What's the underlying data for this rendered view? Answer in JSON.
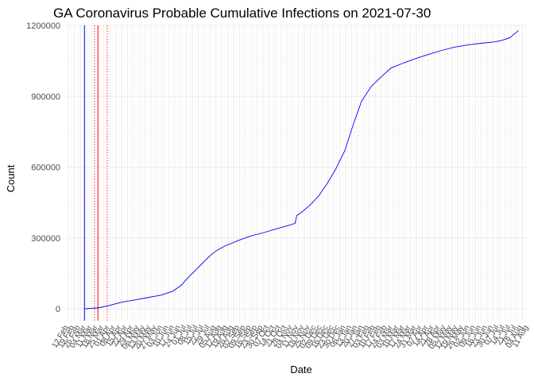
{
  "chart_data": {
    "type": "line",
    "title": "GA Coronavirus Probable Cumulative Infections on 2021-07-30",
    "xlabel": "Date",
    "ylabel": "Count",
    "x_type": "date",
    "xlim": [
      "2020-02-10",
      "2021-08-10"
    ],
    "ylim": [
      -50000,
      1200000
    ],
    "y_ticks": [
      0,
      300000,
      600000,
      900000,
      1200000
    ],
    "y_tick_labels": [
      "0",
      "300000",
      "600000",
      "900000",
      "1200000"
    ],
    "grid": true,
    "legend": "none",
    "line_color": "#0000ff",
    "x_tick_labels": [
      {
        "date": "2020-02-12",
        "label": "12 Feb"
      },
      {
        "date": "2020-02-19",
        "label": "19 Feb"
      },
      {
        "date": "2020-02-26",
        "label": "26 Feb"
      },
      {
        "date": "2020-03-04",
        "label": "04 Mar"
      },
      {
        "date": "2020-03-11",
        "label": "11 Mar"
      },
      {
        "date": "2020-03-18",
        "label": "18 Mar"
      },
      {
        "date": "2020-03-25",
        "label": "25 Mar"
      },
      {
        "date": "2020-04-01",
        "label": "01 Apr"
      },
      {
        "date": "2020-04-08",
        "label": "08 Apr"
      },
      {
        "date": "2020-04-15",
        "label": "15 Apr"
      },
      {
        "date": "2020-04-22",
        "label": "22 Apr"
      },
      {
        "date": "2020-04-29",
        "label": "29 Apr"
      },
      {
        "date": "2020-05-06",
        "label": "06 May"
      },
      {
        "date": "2020-05-13",
        "label": "13 May"
      },
      {
        "date": "2020-05-20",
        "label": "20 May"
      },
      {
        "date": "2020-05-27",
        "label": "27 May"
      },
      {
        "date": "2020-06-03",
        "label": "03 Jun"
      },
      {
        "date": "2020-06-10",
        "label": "10 Jun"
      },
      {
        "date": "2020-06-17",
        "label": "17 Jun"
      },
      {
        "date": "2020-06-24",
        "label": "24 Jun"
      },
      {
        "date": "2020-07-01",
        "label": "01 Jul"
      },
      {
        "date": "2020-07-08",
        "label": "08 Jul"
      },
      {
        "date": "2020-07-15",
        "label": "15 Jul"
      },
      {
        "date": "2020-07-22",
        "label": "22 Jul"
      },
      {
        "date": "2020-07-29",
        "label": "29 Jul"
      },
      {
        "date": "2020-08-05",
        "label": "05 Aug"
      },
      {
        "date": "2020-08-12",
        "label": "12 Aug"
      },
      {
        "date": "2020-08-19",
        "label": "19 Aug"
      },
      {
        "date": "2020-08-26",
        "label": "26 Aug"
      },
      {
        "date": "2020-09-02",
        "label": "02 Sep"
      },
      {
        "date": "2020-09-09",
        "label": "09 Sep"
      },
      {
        "date": "2020-09-16",
        "label": "16 Sep"
      },
      {
        "date": "2020-09-23",
        "label": "23 Sep"
      },
      {
        "date": "2020-09-30",
        "label": "30 Sep"
      },
      {
        "date": "2020-10-07",
        "label": "07 Oct"
      },
      {
        "date": "2020-10-14",
        "label": "14 Oct"
      },
      {
        "date": "2020-10-21",
        "label": "21 Oct"
      },
      {
        "date": "2020-10-28",
        "label": "28 Oct"
      },
      {
        "date": "2020-11-04",
        "label": "04 Nov"
      },
      {
        "date": "2020-11-11",
        "label": "11 Nov"
      },
      {
        "date": "2020-11-18",
        "label": "18 Nov"
      },
      {
        "date": "2020-11-25",
        "label": "25 Nov"
      },
      {
        "date": "2020-12-02",
        "label": "02 Dec"
      },
      {
        "date": "2020-12-09",
        "label": "09 Dec"
      },
      {
        "date": "2020-12-16",
        "label": "16 Dec"
      },
      {
        "date": "2020-12-23",
        "label": "23 Dec"
      },
      {
        "date": "2020-12-30",
        "label": "30 Dec"
      },
      {
        "date": "2021-01-06",
        "label": "06 Jan"
      },
      {
        "date": "2021-01-13",
        "label": "13 Jan"
      },
      {
        "date": "2021-01-20",
        "label": "20 Jan"
      },
      {
        "date": "2021-01-27",
        "label": "27 Jan"
      },
      {
        "date": "2021-02-03",
        "label": "03 Feb"
      },
      {
        "date": "2021-02-10",
        "label": "10 Feb"
      },
      {
        "date": "2021-02-17",
        "label": "17 Feb"
      },
      {
        "date": "2021-02-24",
        "label": "24 Feb"
      },
      {
        "date": "2021-03-03",
        "label": "03 Mar"
      },
      {
        "date": "2021-03-10",
        "label": "10 Mar"
      },
      {
        "date": "2021-03-17",
        "label": "17 Mar"
      },
      {
        "date": "2021-03-24",
        "label": "24 Mar"
      },
      {
        "date": "2021-03-31",
        "label": "31 Mar"
      },
      {
        "date": "2021-04-07",
        "label": "07 Apr"
      },
      {
        "date": "2021-04-14",
        "label": "14 Apr"
      },
      {
        "date": "2021-04-21",
        "label": "21 Apr"
      },
      {
        "date": "2021-04-28",
        "label": "28 Apr"
      },
      {
        "date": "2021-05-05",
        "label": "05 May"
      },
      {
        "date": "2021-05-12",
        "label": "12 May"
      },
      {
        "date": "2021-05-19",
        "label": "19 May"
      },
      {
        "date": "2021-05-26",
        "label": "26 May"
      },
      {
        "date": "2021-06-02",
        "label": "02 Jun"
      },
      {
        "date": "2021-06-09",
        "label": "09 Jun"
      },
      {
        "date": "2021-06-16",
        "label": "16 Jun"
      },
      {
        "date": "2021-06-23",
        "label": "23 Jun"
      },
      {
        "date": "2021-06-30",
        "label": "30 Jun"
      },
      {
        "date": "2021-07-07",
        "label": "07 Jul"
      },
      {
        "date": "2021-07-14",
        "label": "14 Jul"
      },
      {
        "date": "2021-07-21",
        "label": "21 Jul"
      },
      {
        "date": "2021-07-28",
        "label": "28 Jul"
      },
      {
        "date": "2021-08-04",
        "label": "04 Aug"
      },
      {
        "date": "2021-08-11",
        "label": "11 Aug"
      }
    ],
    "series": [
      {
        "color": "#0000ff",
        "x": [
          "2020-03-02",
          "2020-03-20",
          "2020-04-01",
          "2020-04-15",
          "2020-05-01",
          "2020-05-15",
          "2020-06-01",
          "2020-06-15",
          "2020-06-25",
          "2020-07-01",
          "2020-07-08",
          "2020-07-15",
          "2020-07-22",
          "2020-07-29",
          "2020-08-05",
          "2020-08-15",
          "2020-09-01",
          "2020-09-15",
          "2020-10-01",
          "2020-10-15",
          "2020-11-01",
          "2020-11-07",
          "2020-11-09",
          "2020-11-15",
          "2020-11-25",
          "2020-12-05",
          "2020-12-15",
          "2020-12-25",
          "2021-01-05",
          "2021-01-15",
          "2021-01-25",
          "2021-02-05",
          "2021-02-15",
          "2021-03-01",
          "2021-03-15",
          "2021-04-01",
          "2021-04-15",
          "2021-05-01",
          "2021-05-15",
          "2021-06-01",
          "2021-06-15",
          "2021-07-01",
          "2021-07-10",
          "2021-07-20",
          "2021-07-30"
        ],
        "y": [
          0,
          5000,
          15000,
          28000,
          38000,
          47000,
          58000,
          75000,
          100000,
          125000,
          150000,
          175000,
          200000,
          225000,
          245000,
          265000,
          290000,
          308000,
          323000,
          338000,
          355000,
          362000,
          395000,
          410000,
          440000,
          478000,
          530000,
          590000,
          670000,
          780000,
          880000,
          940000,
          975000,
          1020000,
          1040000,
          1062000,
          1078000,
          1095000,
          1108000,
          1118000,
          1124000,
          1130000,
          1136000,
          1148000,
          1178000
        ]
      }
    ],
    "reference_lines": [
      {
        "date": "2020-03-02",
        "color": "#0000ff",
        "style": "solid"
      },
      {
        "date": "2020-03-14",
        "color": "#ff0000",
        "style": "dotted"
      },
      {
        "date": "2020-03-18",
        "color": "#ff0000",
        "style": "solid"
      },
      {
        "date": "2020-03-29",
        "color": "#ff0000",
        "style": "dotted"
      }
    ]
  }
}
